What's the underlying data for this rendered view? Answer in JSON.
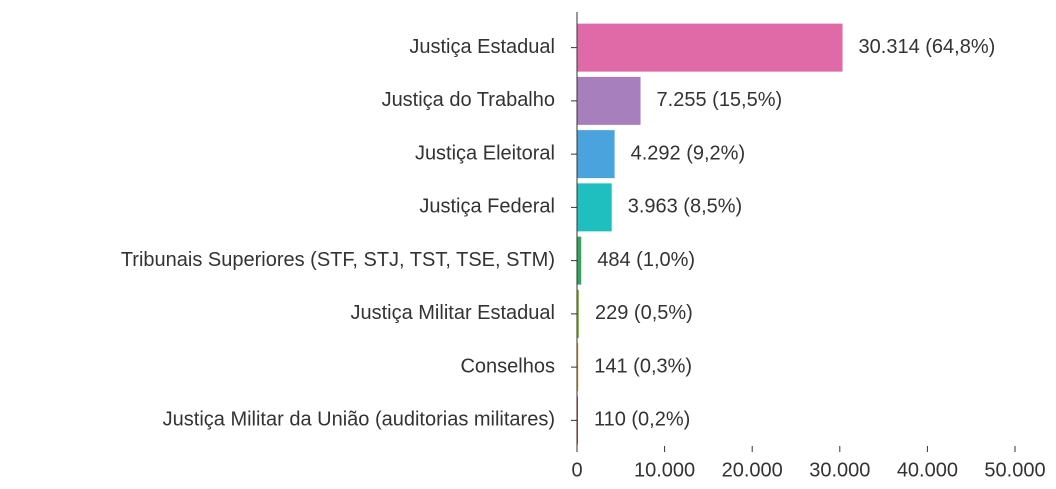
{
  "chart_data": {
    "type": "bar",
    "orientation": "horizontal",
    "categories": [
      "Justiça Estadual",
      "Justiça do Trabalho",
      "Justiça Eleitoral",
      "Justiça Federal",
      "Tribunais Superiores (STF, STJ, TST, TSE, STM)",
      "Justiça Militar Estadual",
      "Conselhos",
      "Justiça Militar da União (auditorias militares)"
    ],
    "values": [
      30314,
      7255,
      4292,
      3963,
      484,
      229,
      141,
      110
    ],
    "value_labels": [
      "30.314 (64,8%)",
      "7.255 (15,5%)",
      "4.292 (9,2%)",
      "3.963 (8,5%)",
      "484 (1,0%)",
      "229 (0,5%)",
      "141 (0,3%)",
      "110 (0,2%)"
    ],
    "colors": [
      "#e06aa8",
      "#a87fbd",
      "#4ba3de",
      "#1fbfbf",
      "#2ca85a",
      "#8fbf2a",
      "#e6a020",
      "#e03a3a"
    ],
    "xlim": [
      0,
      50000
    ],
    "xticks": [
      0,
      {
        "value": 10000,
        "label": "10.000"
      },
      {
        "value": 20000,
        "label": "20.000"
      },
      {
        "value": 30000,
        "label": "30.000"
      },
      {
        "value": 40000,
        "label": "40.000"
      },
      {
        "value": 50000,
        "label": "50.000"
      }
    ],
    "grid": false
  }
}
